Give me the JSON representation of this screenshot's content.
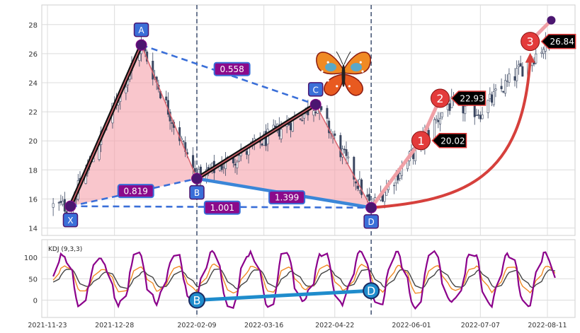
{
  "chart_data": [
    {
      "type": "candlestick",
      "panel": "price",
      "ylim": [
        13.5,
        29
      ],
      "yticks": [
        14,
        16,
        18,
        20,
        22,
        24,
        26,
        28
      ],
      "grid": true,
      "x_ticks": [
        "2021-11-23",
        "2021-12-28",
        "2022-02-09",
        "2022-03-16",
        "2022-04-22",
        "2022-06-01",
        "2022-07-07",
        "2022-08-11"
      ],
      "pattern_points": [
        {
          "label": "X",
          "date": "2021-12-05",
          "value": 15.5
        },
        {
          "label": "A",
          "date": "2022-01-11",
          "value": 26.6
        },
        {
          "label": "B",
          "date": "2022-02-09",
          "value": 17.4
        },
        {
          "label": "C",
          "date": "2022-04-12",
          "value": 22.5
        },
        {
          "label": "D",
          "date": "2022-05-11",
          "value": 15.4
        }
      ],
      "ratios": [
        {
          "label": "0.558",
          "between": "A-C"
        },
        {
          "label": "0.819",
          "between": "X-B"
        },
        {
          "label": "1.001",
          "between": "X-D"
        },
        {
          "label": "1.399",
          "between": "B-D"
        }
      ],
      "targets": [
        {
          "number": "1",
          "value": 20.02,
          "label": "20.02"
        },
        {
          "number": "2",
          "value": 22.93,
          "label": "22.93"
        },
        {
          "number": "3",
          "value": 26.84,
          "label": "26.84"
        }
      ],
      "vertical_markers": [
        "2022-02-09",
        "2022-05-11"
      ]
    },
    {
      "type": "line",
      "panel": "indicator",
      "title": "KDJ (9,3,3)",
      "ylim": [
        -35,
        125
      ],
      "yticks": [
        0,
        50,
        100
      ],
      "grid": true,
      "series_colors": {
        "K": "#f08a24",
        "D": "#444444",
        "J": "#8b008b"
      },
      "divergence_points": [
        {
          "label": "B",
          "date": "2022-02-09",
          "value": 0
        },
        {
          "label": "D",
          "date": "2022-05-11",
          "value": 22
        }
      ]
    }
  ]
}
